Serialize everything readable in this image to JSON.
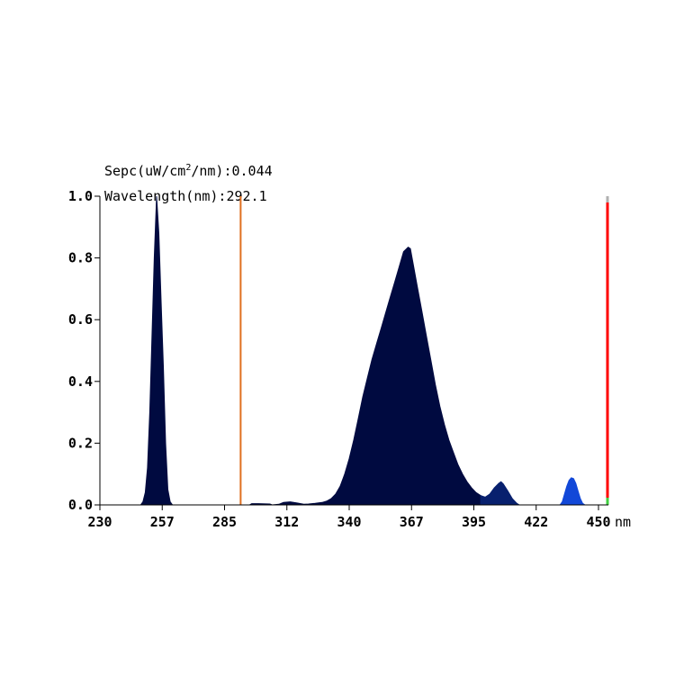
{
  "readout": {
    "spec_label": "Sepc(uW/cm",
    "spec_sup": "2",
    "spec_suffix": "/nm):",
    "spec_value": "0.044",
    "wavelength_label": "Wavelength(nm):",
    "wavelength_value": "292.1"
  },
  "chart_data": {
    "type": "area",
    "title": "",
    "xlabel": "",
    "ylabel": "",
    "x_unit": "nm",
    "xlim": [
      230,
      452
    ],
    "ylim": [
      0,
      1.0
    ],
    "x_ticks": [
      "230",
      "257",
      "285",
      "312",
      "340",
      "367",
      "395",
      "422",
      "450"
    ],
    "y_ticks": [
      "0.0",
      "0.2",
      "0.4",
      "0.6",
      "0.8",
      "1.0"
    ],
    "grid": false,
    "cursor_wavelength": 292.1,
    "cursor_color": "#e07020",
    "end_marker_color": "#ff0000",
    "series": [
      {
        "color": "#000a40",
        "points": [
          [
            248,
            0
          ],
          [
            249,
            0.01
          ],
          [
            250,
            0.04
          ],
          [
            251,
            0.12
          ],
          [
            252,
            0.3
          ],
          [
            253,
            0.55
          ],
          [
            254,
            0.8
          ],
          [
            255,
            1.0
          ],
          [
            256,
            0.88
          ],
          [
            257,
            0.66
          ],
          [
            258,
            0.45
          ],
          [
            259,
            0.2
          ],
          [
            260,
            0.05
          ],
          [
            261,
            0.01
          ],
          [
            262,
            0
          ]
        ]
      },
      {
        "color": "#000a40",
        "points": [
          [
            296,
            0
          ],
          [
            297,
            0.004
          ],
          [
            300,
            0.004
          ],
          [
            305,
            0.003
          ],
          [
            306,
            0
          ],
          [
            309,
            0.002
          ],
          [
            311,
            0.008
          ],
          [
            314,
            0.01
          ],
          [
            317,
            0.006
          ],
          [
            320,
            0.002
          ],
          [
            322,
            0.003
          ],
          [
            325,
            0.005
          ],
          [
            328,
            0.008
          ],
          [
            330,
            0.012
          ],
          [
            332,
            0.02
          ],
          [
            334,
            0.035
          ],
          [
            336,
            0.06
          ],
          [
            338,
            0.1
          ],
          [
            340,
            0.15
          ],
          [
            342,
            0.21
          ],
          [
            344,
            0.28
          ],
          [
            346,
            0.35
          ],
          [
            348,
            0.41
          ],
          [
            350,
            0.47
          ],
          [
            352,
            0.52
          ],
          [
            354,
            0.57
          ],
          [
            356,
            0.62
          ],
          [
            358,
            0.67
          ],
          [
            360,
            0.72
          ],
          [
            362,
            0.77
          ],
          [
            364,
            0.82
          ],
          [
            366,
            0.835
          ],
          [
            367,
            0.83
          ],
          [
            368,
            0.79
          ],
          [
            370,
            0.71
          ],
          [
            372,
            0.63
          ],
          [
            374,
            0.55
          ],
          [
            376,
            0.47
          ],
          [
            378,
            0.39
          ],
          [
            380,
            0.32
          ],
          [
            382,
            0.26
          ],
          [
            384,
            0.21
          ],
          [
            386,
            0.17
          ],
          [
            388,
            0.13
          ],
          [
            390,
            0.1
          ],
          [
            392,
            0.075
          ],
          [
            394,
            0.055
          ],
          [
            396,
            0.04
          ],
          [
            398,
            0.03
          ]
        ]
      },
      {
        "color": "#08206e",
        "points": [
          [
            398,
            0.03
          ],
          [
            400,
            0.025
          ],
          [
            402,
            0.035
          ],
          [
            404,
            0.055
          ],
          [
            406,
            0.07
          ],
          [
            407,
            0.075
          ],
          [
            408,
            0.068
          ],
          [
            410,
            0.045
          ],
          [
            412,
            0.02
          ],
          [
            414,
            0.005
          ],
          [
            415,
            0
          ]
        ]
      },
      {
        "color": "#1248d8",
        "points": [
          [
            433,
            0
          ],
          [
            434,
            0.01
          ],
          [
            435,
            0.035
          ],
          [
            436,
            0.06
          ],
          [
            437,
            0.08
          ],
          [
            438,
            0.088
          ],
          [
            439,
            0.085
          ],
          [
            440,
            0.07
          ],
          [
            441,
            0.045
          ],
          [
            442,
            0.02
          ],
          [
            443,
            0.005
          ],
          [
            444,
            0
          ]
        ]
      }
    ]
  }
}
